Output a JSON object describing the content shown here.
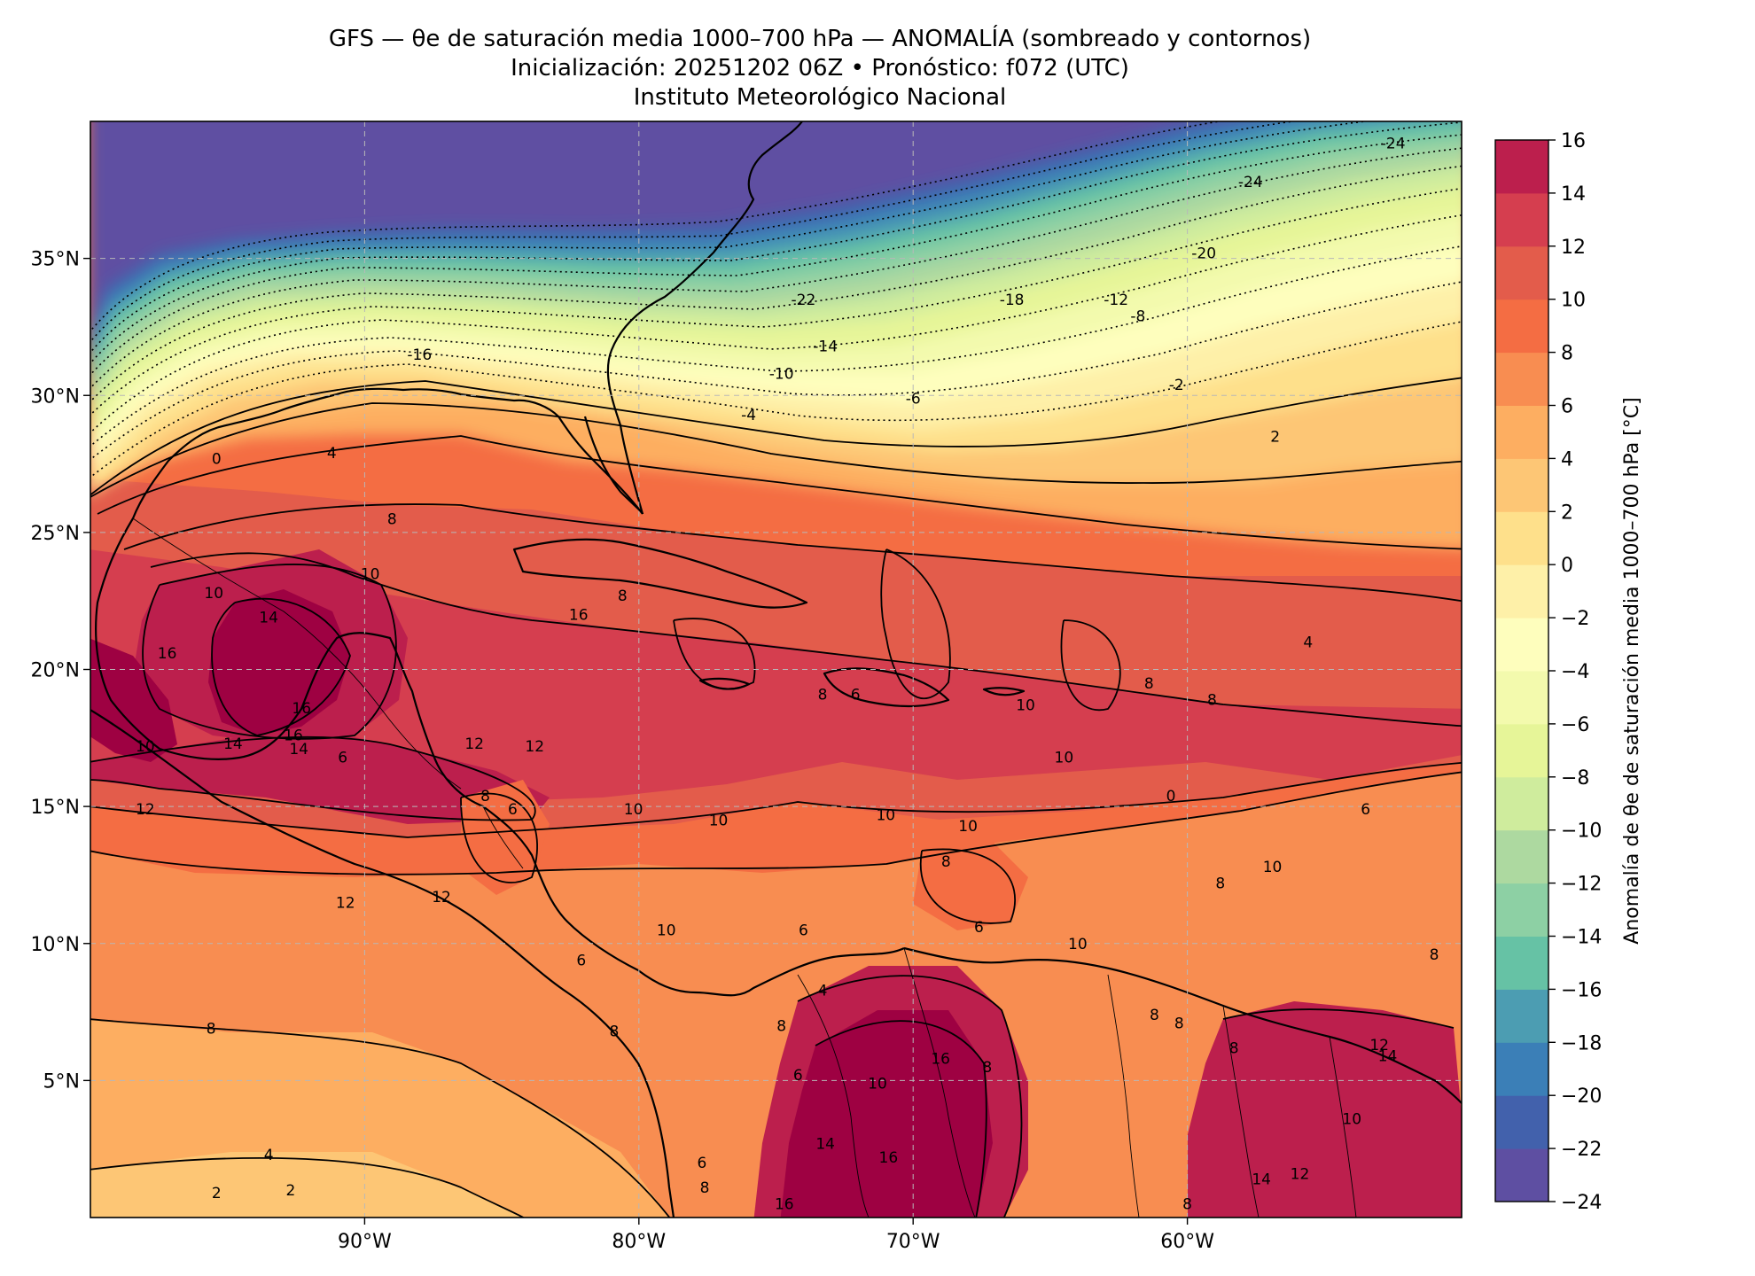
{
  "title": {
    "line1": "GFS — θe de saturación media 1000–700 hPa — ANOMALÍA (sombreado y contornos)",
    "line2": "Inicialización: 20251202 06Z   •   Pronóstico: f072 (UTC)",
    "line3": "Instituto Meteorológico Nacional"
  },
  "map": {
    "lon_range": [
      -100,
      -50
    ],
    "lat_range": [
      0,
      40
    ],
    "lon_ticks": [
      {
        "value": -90,
        "label": "90°W"
      },
      {
        "value": -80,
        "label": "80°W"
      },
      {
        "value": -70,
        "label": "70°W"
      },
      {
        "value": -60,
        "label": "60°W"
      }
    ],
    "lat_ticks": [
      {
        "value": 35,
        "label": "35°N"
      },
      {
        "value": 30,
        "label": "30°N"
      },
      {
        "value": 25,
        "label": "25°N"
      },
      {
        "value": 20,
        "label": "20°N"
      },
      {
        "value": 15,
        "label": "15°N"
      },
      {
        "value": 10,
        "label": "10°N"
      },
      {
        "value": 5,
        "label": "5°N"
      }
    ],
    "gridlines": true,
    "contour_labels": [
      {
        "lon": -52.5,
        "lat": 39.2,
        "text": "-24"
      },
      {
        "lon": -57.7,
        "lat": 37.8,
        "text": "-24"
      },
      {
        "lon": -59.4,
        "lat": 35.2,
        "text": "-20"
      },
      {
        "lon": -66.4,
        "lat": 33.5,
        "text": "-18"
      },
      {
        "lon": -74.0,
        "lat": 33.5,
        "text": "-22"
      },
      {
        "lon": -62.6,
        "lat": 33.5,
        "text": "-12"
      },
      {
        "lon": -61.8,
        "lat": 32.9,
        "text": "-8"
      },
      {
        "lon": -73.2,
        "lat": 31.8,
        "text": "-14"
      },
      {
        "lon": -74.8,
        "lat": 30.8,
        "text": "-10"
      },
      {
        "lon": -70.0,
        "lat": 29.9,
        "text": "-6"
      },
      {
        "lon": -76.0,
        "lat": 29.3,
        "text": "-4"
      },
      {
        "lon": -60.4,
        "lat": 30.4,
        "text": "-2"
      },
      {
        "lon": -88.0,
        "lat": 31.5,
        "text": "-16"
      },
      {
        "lon": -95.4,
        "lat": 27.7,
        "text": "0"
      },
      {
        "lon": -91.2,
        "lat": 27.9,
        "text": "4"
      },
      {
        "lon": -56.8,
        "lat": 28.5,
        "text": "2"
      },
      {
        "lon": -89.0,
        "lat": 25.5,
        "text": "8"
      },
      {
        "lon": -89.8,
        "lat": 23.5,
        "text": "10"
      },
      {
        "lon": -95.5,
        "lat": 22.8,
        "text": "10"
      },
      {
        "lon": -93.5,
        "lat": 21.9,
        "text": "14"
      },
      {
        "lon": -92.3,
        "lat": 18.6,
        "text": "16"
      },
      {
        "lon": -82.2,
        "lat": 22.0,
        "text": "16"
      },
      {
        "lon": -80.6,
        "lat": 22.7,
        "text": "8"
      },
      {
        "lon": -83.8,
        "lat": 17.2,
        "text": "12"
      },
      {
        "lon": -86.0,
        "lat": 17.3,
        "text": "12"
      },
      {
        "lon": -98.0,
        "lat": 14.9,
        "text": "12"
      },
      {
        "lon": -90.7,
        "lat": 11.5,
        "text": "12"
      },
      {
        "lon": -87.2,
        "lat": 11.7,
        "text": "12"
      },
      {
        "lon": -85.6,
        "lat": 15.4,
        "text": "8"
      },
      {
        "lon": -84.6,
        "lat": 14.9,
        "text": "6"
      },
      {
        "lon": -80.2,
        "lat": 14.9,
        "text": "10"
      },
      {
        "lon": -77.1,
        "lat": 14.5,
        "text": "10"
      },
      {
        "lon": -79.0,
        "lat": 10.5,
        "text": "10"
      },
      {
        "lon": -71.0,
        "lat": 14.7,
        "text": "10"
      },
      {
        "lon": -68.0,
        "lat": 14.3,
        "text": "10"
      },
      {
        "lon": -68.8,
        "lat": 13.0,
        "text": "8"
      },
      {
        "lon": -65.9,
        "lat": 18.7,
        "text": "10"
      },
      {
        "lon": -64.5,
        "lat": 16.8,
        "text": "10"
      },
      {
        "lon": -60.6,
        "lat": 15.4,
        "text": "0"
      },
      {
        "lon": -56.9,
        "lat": 12.8,
        "text": "10"
      },
      {
        "lon": -58.8,
        "lat": 12.2,
        "text": "8"
      },
      {
        "lon": -61.4,
        "lat": 19.5,
        "text": "8"
      },
      {
        "lon": -59.1,
        "lat": 18.9,
        "text": "8"
      },
      {
        "lon": -55.6,
        "lat": 21.0,
        "text": "4"
      },
      {
        "lon": -53.5,
        "lat": 14.9,
        "text": "6"
      },
      {
        "lon": -51.0,
        "lat": 9.6,
        "text": "8"
      },
      {
        "lon": -67.6,
        "lat": 10.6,
        "text": "6"
      },
      {
        "lon": -64.0,
        "lat": 10.0,
        "text": "10"
      },
      {
        "lon": -73.3,
        "lat": 19.1,
        "text": "8"
      },
      {
        "lon": -72.1,
        "lat": 19.1,
        "text": "6"
      },
      {
        "lon": -82.1,
        "lat": 9.4,
        "text": "6"
      },
      {
        "lon": -74.0,
        "lat": 10.5,
        "text": "6"
      },
      {
        "lon": -73.3,
        "lat": 8.3,
        "text": "4"
      },
      {
        "lon": -69.0,
        "lat": 5.8,
        "text": "16"
      },
      {
        "lon": -71.3,
        "lat": 4.9,
        "text": "10"
      },
      {
        "lon": -74.8,
        "lat": 7.0,
        "text": "8"
      },
      {
        "lon": -74.2,
        "lat": 5.2,
        "text": "6"
      },
      {
        "lon": -73.2,
        "lat": 2.7,
        "text": "14"
      },
      {
        "lon": -70.9,
        "lat": 2.2,
        "text": "16"
      },
      {
        "lon": -74.7,
        "lat": 0.5,
        "text": "16"
      },
      {
        "lon": -77.7,
        "lat": 2.0,
        "text": "6"
      },
      {
        "lon": -77.6,
        "lat": 1.1,
        "text": "8"
      },
      {
        "lon": -80.9,
        "lat": 6.8,
        "text": "8"
      },
      {
        "lon": -92.7,
        "lat": 1.0,
        "text": "2"
      },
      {
        "lon": -95.4,
        "lat": 0.9,
        "text": "2"
      },
      {
        "lon": -93.5,
        "lat": 2.3,
        "text": "4"
      },
      {
        "lon": -95.6,
        "lat": 6.9,
        "text": "8"
      },
      {
        "lon": -67.3,
        "lat": 5.5,
        "text": "8"
      },
      {
        "lon": -61.2,
        "lat": 7.4,
        "text": "8"
      },
      {
        "lon": -60.3,
        "lat": 7.1,
        "text": "8"
      },
      {
        "lon": -58.3,
        "lat": 6.2,
        "text": "8"
      },
      {
        "lon": -57.3,
        "lat": 1.4,
        "text": "14"
      },
      {
        "lon": -55.9,
        "lat": 1.6,
        "text": "12"
      },
      {
        "lon": -53.0,
        "lat": 6.3,
        "text": "12"
      },
      {
        "lon": -52.7,
        "lat": 5.9,
        "text": "14"
      },
      {
        "lon": -54.0,
        "lat": 3.6,
        "text": "10"
      },
      {
        "lon": -60.0,
        "lat": 0.5,
        "text": "8"
      },
      {
        "lon": -92.6,
        "lat": 17.6,
        "text": "16"
      },
      {
        "lon": -90.8,
        "lat": 16.8,
        "text": "6"
      },
      {
        "lon": -94.8,
        "lat": 17.3,
        "text": "14"
      },
      {
        "lon": -92.4,
        "lat": 17.1,
        "text": "14"
      },
      {
        "lon": -97.2,
        "lat": 20.6,
        "text": "16"
      },
      {
        "lon": -98.0,
        "lat": 17.2,
        "text": "10"
      }
    ]
  },
  "colorbar": {
    "label": "Anomalía de θe de saturación media 1000–700 hPa [°C]",
    "levels": [
      -24,
      -22,
      -20,
      -18,
      -16,
      -14,
      -12,
      -10,
      -8,
      -6,
      -4,
      -2,
      0,
      2,
      4,
      6,
      8,
      10,
      12,
      14,
      16
    ],
    "tick_labels": [
      "16",
      "14",
      "12",
      "10",
      "8",
      "6",
      "4",
      "2",
      "0",
      "−2",
      "−4",
      "−6",
      "−8",
      "−10",
      "−12",
      "−14",
      "−16",
      "−18",
      "−20",
      "−22",
      "−24"
    ],
    "colors": [
      "#5e4fa2",
      "#4261ac",
      "#3b7fb7",
      "#4c9db2",
      "#66c2a5",
      "#8dd0a4",
      "#add9a0",
      "#cfec9d",
      "#e6f598",
      "#f3faad",
      "#fefebd",
      "#fef0a8",
      "#fee08b",
      "#fdc675",
      "#fdae61",
      "#f88d51",
      "#f46d43",
      "#e35c4b",
      "#d53e4f",
      "#bc1f4d",
      "#9e0142"
    ]
  }
}
